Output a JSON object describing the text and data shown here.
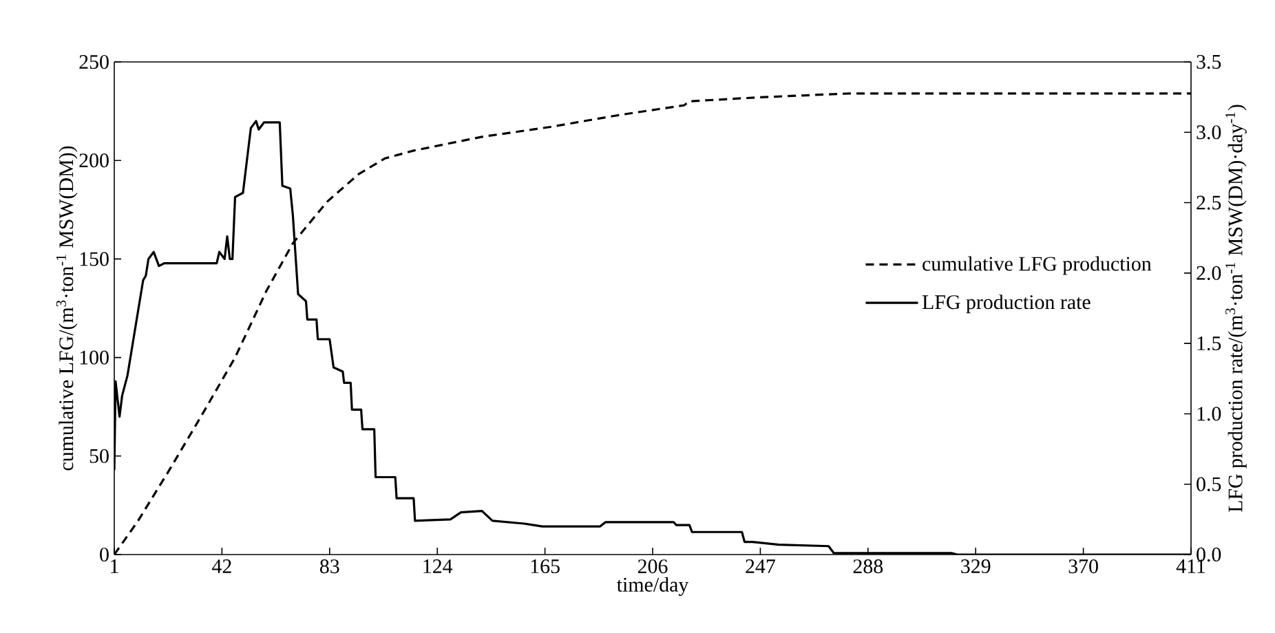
{
  "chart_data": {
    "type": "line",
    "xlabel": "time/day",
    "ylabel": "cumulative LFG/(m$^{3}$·ton$^{-1}$ MSW(DM))",
    "y2label": "LFG production rate/(m$^{3}$·ton$^{-1}$ MSW(DM)·day$^{-1}$)",
    "xlim": [
      1,
      411
    ],
    "xticks": [
      1,
      42,
      83,
      124,
      165,
      206,
      247,
      288,
      329,
      370,
      411
    ],
    "ylim": [
      0,
      250
    ],
    "yticks": [
      0,
      50,
      100,
      150,
      200,
      250
    ],
    "y2lim": [
      0,
      3.5
    ],
    "y2ticks": [
      {
        "value": 0,
        "label": "0.0"
      },
      {
        "value": 0.5,
        "label": "0.5"
      },
      {
        "value": 1,
        "label": "1.0"
      },
      {
        "value": 1.5,
        "label": "1.5"
      },
      {
        "value": 2,
        "label": "2.0"
      },
      {
        "value": 2.5,
        "label": "2.5"
      },
      {
        "value": 3,
        "label": "3.0"
      },
      {
        "value": 3.5,
        "label": "3.5"
      }
    ],
    "legend": "right",
    "grid": false,
    "marker": "none",
    "series": [
      {
        "name": "cumulative LFG production",
        "color": "#000000",
        "line_style": "dashed",
        "x": [
          1,
          10,
          22,
          34,
          47,
          59,
          69,
          82,
          94,
          104,
          115,
          141,
          167,
          193,
          218,
          220,
          246,
          281,
          330,
          411
        ],
        "values": [
          0,
          17,
          43,
          70,
          100,
          134,
          158,
          179,
          193,
          201,
          205,
          212,
          217,
          223,
          228,
          230,
          232,
          234,
          234,
          234
        ]
      },
      {
        "name": "LFG production rate",
        "color": "#000000",
        "line_style": "solid",
        "axis": "y2",
        "x": [
          1,
          1.5,
          3,
          4,
          6,
          12,
          13,
          14,
          16,
          18,
          20,
          40,
          41,
          43,
          44,
          45,
          46,
          47,
          50,
          53,
          55,
          56,
          58,
          64,
          65,
          68,
          69,
          71,
          74,
          74.5,
          78,
          78.5,
          83,
          84.5,
          88,
          88.5,
          91,
          91.5,
          95,
          95.5,
          100,
          100.5,
          108,
          108.5,
          115,
          115.5,
          129,
          133,
          141,
          145,
          157,
          164,
          186,
          188,
          214,
          215,
          220,
          221,
          240,
          241,
          244,
          254,
          273,
          275,
          320,
          322,
          411
        ],
        "values": [
          0.6,
          1.23,
          0.98,
          1.13,
          1.27,
          1.95,
          1.98,
          2.1,
          2.15,
          2.05,
          2.07,
          2.07,
          2.15,
          2.1,
          2.26,
          2.1,
          2.1,
          2.54,
          2.57,
          3.03,
          3.08,
          3.02,
          3.07,
          3.07,
          2.62,
          2.6,
          2.41,
          1.85,
          1.8,
          1.67,
          1.67,
          1.53,
          1.53,
          1.33,
          1.3,
          1.22,
          1.22,
          1.03,
          1.03,
          0.89,
          0.89,
          0.55,
          0.55,
          0.4,
          0.4,
          0.24,
          0.25,
          0.3,
          0.31,
          0.24,
          0.22,
          0.2,
          0.2,
          0.23,
          0.23,
          0.21,
          0.21,
          0.16,
          0.16,
          0.09,
          0.09,
          0.07,
          0.06,
          0.01,
          0.01,
          0,
          0
        ]
      }
    ]
  }
}
